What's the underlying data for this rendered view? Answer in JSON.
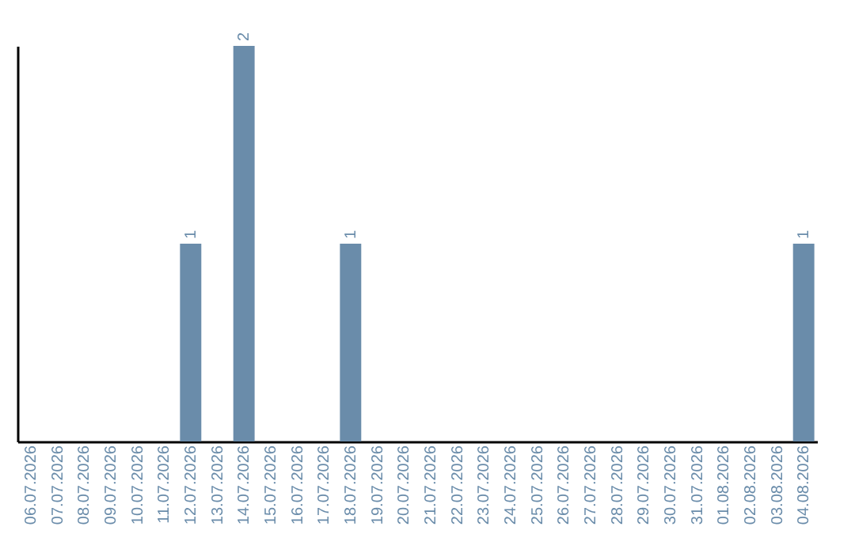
{
  "chart_data": {
    "type": "bar",
    "categories": [
      "06.07.2026",
      "07.07.2026",
      "08.07.2026",
      "09.07.2026",
      "10.07.2026",
      "11.07.2026",
      "12.07.2026",
      "13.07.2026",
      "14.07.2026",
      "15.07.2026",
      "16.07.2026",
      "17.07.2026",
      "18.07.2026",
      "19.07.2026",
      "20.07.2026",
      "21.07.2026",
      "22.07.2026",
      "23.07.2026",
      "24.07.2026",
      "25.07.2026",
      "26.07.2026",
      "27.07.2026",
      "28.07.2026",
      "29.07.2026",
      "30.07.2026",
      "31.07.2026",
      "01.08.2026",
      "02.08.2026",
      "03.08.2026",
      "04.08.2026"
    ],
    "values": [
      0,
      0,
      0,
      0,
      0,
      0,
      1,
      0,
      2,
      0,
      0,
      0,
      1,
      0,
      0,
      0,
      0,
      0,
      0,
      0,
      0,
      0,
      0,
      0,
      0,
      0,
      0,
      0,
      0,
      1
    ],
    "value_labels": [
      null,
      null,
      null,
      null,
      null,
      null,
      "1",
      null,
      "2",
      null,
      null,
      null,
      "1",
      null,
      null,
      null,
      null,
      null,
      null,
      null,
      null,
      null,
      null,
      null,
      null,
      null,
      null,
      null,
      null,
      "1"
    ],
    "color": "#6a8caa",
    "tick_labels": "x",
    "grid": false
  }
}
